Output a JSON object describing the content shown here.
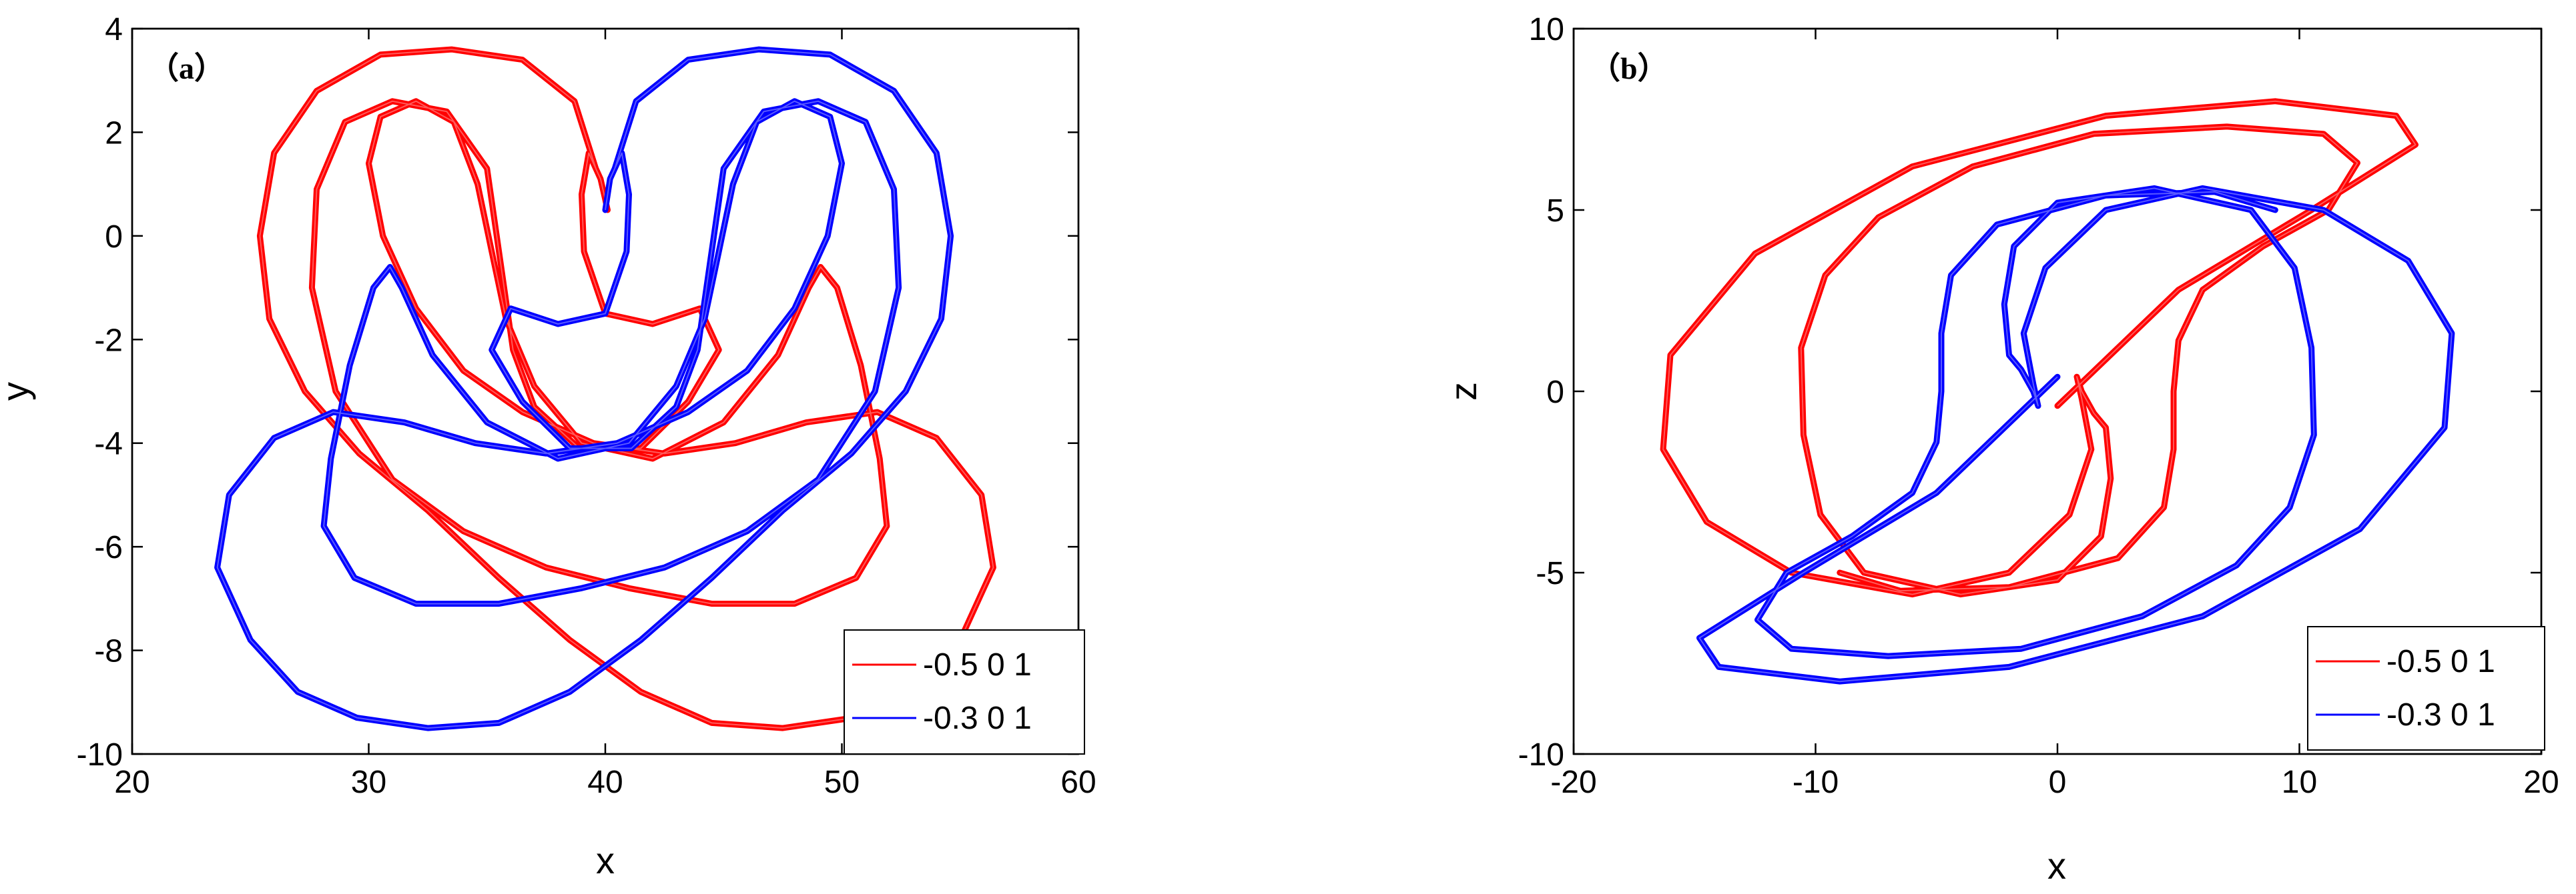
{
  "chart_data": [
    {
      "type": "line",
      "panel_label": "（a）",
      "xlabel": "x",
      "ylabel": "y",
      "xlim": [
        20,
        60
      ],
      "ylim": [
        -10,
        4
      ],
      "xticks": [
        20,
        30,
        40,
        50,
        60
      ],
      "yticks": [
        -10,
        -8,
        -6,
        -4,
        -2,
        0,
        2,
        4
      ],
      "grid": false,
      "legend_position": "bottom-right",
      "series": [
        {
          "name": "-0.5 0 1",
          "color": "#ff0000",
          "points": [
            [
              39.6,
              1.3
            ],
            [
              38.7,
              2.6
            ],
            [
              36.5,
              3.4
            ],
            [
              33.5,
              3.6
            ],
            [
              30.5,
              3.5
            ],
            [
              27.8,
              2.8
            ],
            [
              26.0,
              1.6
            ],
            [
              25.4,
              0.0
            ],
            [
              25.8,
              -1.6
            ],
            [
              27.3,
              -3.0
            ],
            [
              29.6,
              -4.2
            ],
            [
              32.5,
              -5.3
            ],
            [
              35.5,
              -6.6
            ],
            [
              38.5,
              -7.8
            ],
            [
              41.5,
              -8.8
            ],
            [
              44.5,
              -9.4
            ],
            [
              47.5,
              -9.5
            ],
            [
              50.5,
              -9.3
            ],
            [
              53.0,
              -8.8
            ],
            [
              55.0,
              -7.8
            ],
            [
              56.4,
              -6.4
            ],
            [
              55.9,
              -5.0
            ],
            [
              54.0,
              -3.9
            ],
            [
              51.5,
              -3.4
            ],
            [
              48.5,
              -3.6
            ],
            [
              45.5,
              -4.0
            ],
            [
              42.5,
              -4.2
            ],
            [
              39.5,
              -4.0
            ],
            [
              36.5,
              -3.4
            ],
            [
              34.0,
              -2.6
            ],
            [
              32.0,
              -1.4
            ],
            [
              30.6,
              0.0
            ],
            [
              30.0,
              1.4
            ],
            [
              30.5,
              2.3
            ],
            [
              32.0,
              2.6
            ],
            [
              33.6,
              2.2
            ],
            [
              34.6,
              1.0
            ],
            [
              35.2,
              -0.3
            ],
            [
              35.8,
              -1.6
            ],
            [
              37.0,
              -2.9
            ],
            [
              39.0,
              -4.0
            ],
            [
              42.0,
              -4.3
            ],
            [
              45.0,
              -3.6
            ],
            [
              47.3,
              -2.3
            ],
            [
              48.6,
              -1.0
            ],
            [
              49.1,
              -0.6
            ],
            [
              49.8,
              -1.0
            ],
            [
              50.8,
              -2.5
            ],
            [
              51.6,
              -4.3
            ],
            [
              51.9,
              -5.6
            ],
            [
              50.6,
              -6.6
            ],
            [
              48.0,
              -7.1
            ],
            [
              44.5,
              -7.1
            ],
            [
              41.0,
              -6.8
            ],
            [
              37.5,
              -6.4
            ],
            [
              34.0,
              -5.7
            ],
            [
              31.0,
              -4.7
            ],
            [
              28.6,
              -3.0
            ],
            [
              27.6,
              -1.0
            ],
            [
              27.8,
              0.9
            ],
            [
              29.0,
              2.2
            ],
            [
              31.0,
              2.6
            ],
            [
              33.3,
              2.4
            ],
            [
              35.0,
              1.3
            ],
            [
              35.6,
              -0.6
            ],
            [
              36.1,
              -2.2
            ],
            [
              37.0,
              -3.3
            ],
            [
              38.9,
              -4.1
            ],
            [
              41.5,
              -4.1
            ],
            [
              43.5,
              -3.2
            ],
            [
              44.8,
              -2.2
            ],
            [
              44.0,
              -1.4
            ],
            [
              42.0,
              -1.7
            ],
            [
              40.0,
              -1.5
            ],
            [
              39.1,
              -0.3
            ],
            [
              39.0,
              0.8
            ],
            [
              39.3,
              1.6
            ],
            [
              39.8,
              1.1
            ],
            [
              40.1,
              0.5
            ]
          ]
        },
        {
          "name": "-0.3 0 1",
          "color": "#0000ff",
          "points": [
            [
              40.4,
              1.3
            ],
            [
              41.3,
              2.6
            ],
            [
              43.5,
              3.4
            ],
            [
              46.5,
              3.6
            ],
            [
              49.5,
              3.5
            ],
            [
              52.2,
              2.8
            ],
            [
              54.0,
              1.6
            ],
            [
              54.6,
              0.0
            ],
            [
              54.2,
              -1.6
            ],
            [
              52.7,
              -3.0
            ],
            [
              50.4,
              -4.2
            ],
            [
              47.5,
              -5.3
            ],
            [
              44.5,
              -6.6
            ],
            [
              41.5,
              -7.8
            ],
            [
              38.5,
              -8.8
            ],
            [
              35.5,
              -9.4
            ],
            [
              32.5,
              -9.5
            ],
            [
              29.5,
              -9.3
            ],
            [
              27.0,
              -8.8
            ],
            [
              25.0,
              -7.8
            ],
            [
              23.6,
              -6.4
            ],
            [
              24.1,
              -5.0
            ],
            [
              26.0,
              -3.9
            ],
            [
              28.5,
              -3.4
            ],
            [
              31.5,
              -3.6
            ],
            [
              34.5,
              -4.0
            ],
            [
              37.5,
              -4.2
            ],
            [
              40.5,
              -4.0
            ],
            [
              43.5,
              -3.4
            ],
            [
              46.0,
              -2.6
            ],
            [
              48.0,
              -1.4
            ],
            [
              49.4,
              0.0
            ],
            [
              50.0,
              1.4
            ],
            [
              49.5,
              2.3
            ],
            [
              48.0,
              2.6
            ],
            [
              46.4,
              2.2
            ],
            [
              45.4,
              1.0
            ],
            [
              44.8,
              -0.3
            ],
            [
              44.2,
              -1.6
            ],
            [
              43.0,
              -2.9
            ],
            [
              41.0,
              -4.0
            ],
            [
              38.0,
              -4.3
            ],
            [
              35.0,
              -3.6
            ],
            [
              32.7,
              -2.3
            ],
            [
              31.4,
              -1.0
            ],
            [
              30.9,
              -0.6
            ],
            [
              30.2,
              -1.0
            ],
            [
              29.2,
              -2.5
            ],
            [
              28.4,
              -4.3
            ],
            [
              28.1,
              -5.6
            ],
            [
              29.4,
              -6.6
            ],
            [
              32.0,
              -7.1
            ],
            [
              35.5,
              -7.1
            ],
            [
              39.0,
              -6.8
            ],
            [
              42.5,
              -6.4
            ],
            [
              46.0,
              -5.7
            ],
            [
              49.0,
              -4.7
            ],
            [
              51.4,
              -3.0
            ],
            [
              52.4,
              -1.0
            ],
            [
              52.2,
              0.9
            ],
            [
              51.0,
              2.2
            ],
            [
              49.0,
              2.6
            ],
            [
              46.7,
              2.4
            ],
            [
              45.0,
              1.3
            ],
            [
              44.4,
              -0.6
            ],
            [
              43.9,
              -2.2
            ],
            [
              43.0,
              -3.3
            ],
            [
              41.1,
              -4.1
            ],
            [
              38.5,
              -4.1
            ],
            [
              36.5,
              -3.2
            ],
            [
              35.2,
              -2.2
            ],
            [
              36.0,
              -1.4
            ],
            [
              38.0,
              -1.7
            ],
            [
              40.0,
              -1.5
            ],
            [
              40.9,
              -0.3
            ],
            [
              41.0,
              0.8
            ],
            [
              40.7,
              1.6
            ],
            [
              40.2,
              1.1
            ],
            [
              40.0,
              0.5
            ]
          ]
        }
      ]
    },
    {
      "type": "line",
      "panel_label": "（b）",
      "xlabel": "x",
      "ylabel": "z",
      "xlim": [
        -20,
        20
      ],
      "ylim": [
        -10,
        10
      ],
      "xticks": [
        -20,
        -10,
        0,
        10,
        20
      ],
      "yticks": [
        -10,
        -5,
        0,
        5,
        10
      ],
      "grid": false,
      "legend_position": "bottom-right",
      "series": [
        {
          "name": "-0.5 0 1",
          "color": "#ff0000",
          "points": [
            [
              0.0,
              -0.4
            ],
            [
              5.0,
              2.8
            ],
            [
              10.5,
              5.0
            ],
            [
              14.8,
              6.8
            ],
            [
              14.0,
              7.6
            ],
            [
              9.0,
              8.0
            ],
            [
              2.0,
              7.6
            ],
            [
              -6.0,
              6.2
            ],
            [
              -12.5,
              3.8
            ],
            [
              -16.0,
              1.0
            ],
            [
              -16.3,
              -1.6
            ],
            [
              -14.5,
              -3.6
            ],
            [
              -11.0,
              -5.0
            ],
            [
              -6.0,
              -5.6
            ],
            [
              -2.0,
              -5.0
            ],
            [
              0.5,
              -3.4
            ],
            [
              1.4,
              -1.6
            ],
            [
              1.0,
              -0.2
            ],
            [
              0.8,
              0.4
            ],
            [
              1.0,
              0.0
            ],
            [
              1.5,
              -0.6
            ],
            [
              2.0,
              -1.0
            ],
            [
              2.2,
              -2.4
            ],
            [
              1.8,
              -4.0
            ],
            [
              0.0,
              -5.2
            ],
            [
              -4.0,
              -5.6
            ],
            [
              -8.0,
              -5.0
            ],
            [
              -9.8,
              -3.4
            ],
            [
              -10.5,
              -1.2
            ],
            [
              -10.6,
              1.2
            ],
            [
              -9.6,
              3.2
            ],
            [
              -7.4,
              4.8
            ],
            [
              -3.5,
              6.2
            ],
            [
              1.5,
              7.1
            ],
            [
              7.0,
              7.3
            ],
            [
              11.0,
              7.1
            ],
            [
              12.4,
              6.3
            ],
            [
              11.2,
              5.0
            ],
            [
              8.5,
              4.0
            ],
            [
              6.0,
              2.8
            ],
            [
              5.0,
              1.4
            ],
            [
              4.8,
              0.0
            ],
            [
              4.8,
              -1.6
            ],
            [
              4.4,
              -3.2
            ],
            [
              2.5,
              -4.6
            ],
            [
              -2.0,
              -5.4
            ],
            [
              -6.5,
              -5.5
            ],
            [
              -9.0,
              -5.0
            ]
          ]
        },
        {
          "name": "-0.3 0 1",
          "color": "#0000ff",
          "points": [
            [
              0.0,
              0.4
            ],
            [
              -5.0,
              -2.8
            ],
            [
              -10.5,
              -5.0
            ],
            [
              -14.8,
              -6.8
            ],
            [
              -14.0,
              -7.6
            ],
            [
              -9.0,
              -8.0
            ],
            [
              -2.0,
              -7.6
            ],
            [
              6.0,
              -6.2
            ],
            [
              12.5,
              -3.8
            ],
            [
              16.0,
              -1.0
            ],
            [
              16.3,
              1.6
            ],
            [
              14.5,
              3.6
            ],
            [
              11.0,
              5.0
            ],
            [
              6.0,
              5.6
            ],
            [
              2.0,
              5.0
            ],
            [
              -0.5,
              3.4
            ],
            [
              -1.4,
              1.6
            ],
            [
              -1.0,
              0.2
            ],
            [
              -0.8,
              -0.4
            ],
            [
              -1.0,
              0.0
            ],
            [
              -1.5,
              0.6
            ],
            [
              -2.0,
              1.0
            ],
            [
              -2.2,
              2.4
            ],
            [
              -1.8,
              4.0
            ],
            [
              0.0,
              5.2
            ],
            [
              4.0,
              5.6
            ],
            [
              8.0,
              5.0
            ],
            [
              9.8,
              3.4
            ],
            [
              10.5,
              1.2
            ],
            [
              10.6,
              -1.2
            ],
            [
              9.6,
              -3.2
            ],
            [
              7.4,
              -4.8
            ],
            [
              3.5,
              -6.2
            ],
            [
              -1.5,
              -7.1
            ],
            [
              -7.0,
              -7.3
            ],
            [
              -11.0,
              -7.1
            ],
            [
              -12.4,
              -6.3
            ],
            [
              -11.2,
              -5.0
            ],
            [
              -8.5,
              -4.0
            ],
            [
              -6.0,
              -2.8
            ],
            [
              -5.0,
              -1.4
            ],
            [
              -4.8,
              0.0
            ],
            [
              -4.8,
              1.6
            ],
            [
              -4.4,
              3.2
            ],
            [
              -2.5,
              4.6
            ],
            [
              2.0,
              5.4
            ],
            [
              6.5,
              5.5
            ],
            [
              9.0,
              5.0
            ]
          ]
        }
      ]
    }
  ]
}
